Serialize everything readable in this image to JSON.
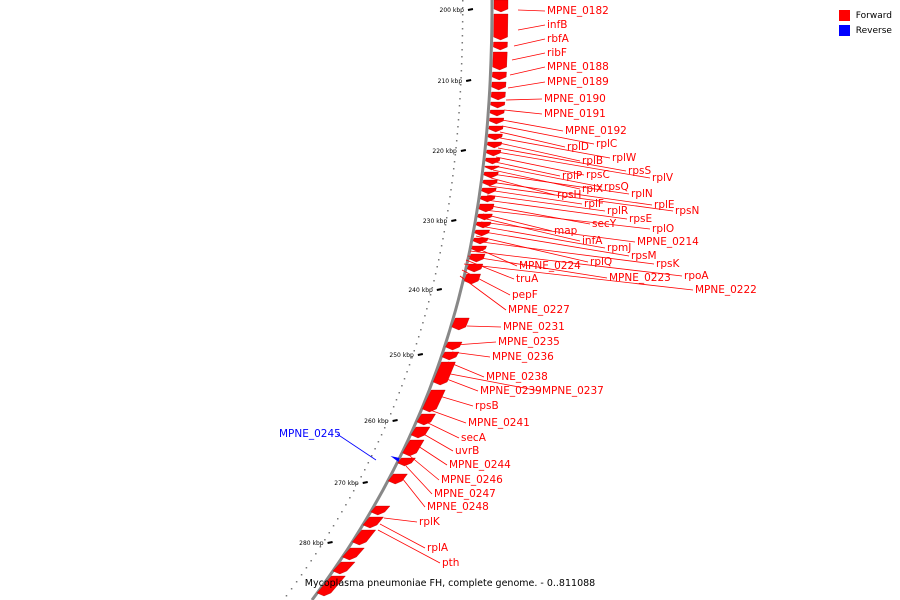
{
  "legend": {
    "forward_label": "Forward",
    "reverse_label": "Reverse",
    "forward_color": "#ff0000",
    "reverse_color": "#0000ff"
  },
  "caption": "Mycoplasma pneumoniae FH, complete genome. - 0..811088",
  "scale": {
    "ticks": [
      "200 kbp",
      "210 kbp",
      "220 kbp",
      "230 kbp",
      "240 kbp",
      "250 kbp",
      "260 kbp",
      "270 kbp",
      "280 kbp"
    ]
  },
  "genes": [
    {
      "name": "MPNE_0182",
      "strand": "forward"
    },
    {
      "name": "infB",
      "strand": "forward"
    },
    {
      "name": "rbfA",
      "strand": "forward"
    },
    {
      "name": "ribF",
      "strand": "forward"
    },
    {
      "name": "MPNE_0188",
      "strand": "forward"
    },
    {
      "name": "MPNE_0189",
      "strand": "forward"
    },
    {
      "name": "MPNE_0190",
      "strand": "forward"
    },
    {
      "name": "MPNE_0191",
      "strand": "forward"
    },
    {
      "name": "MPNE_0192",
      "strand": "forward"
    },
    {
      "name": "rplC",
      "strand": "forward"
    },
    {
      "name": "rplD",
      "strand": "forward"
    },
    {
      "name": "rplW",
      "strand": "forward"
    },
    {
      "name": "rplB",
      "strand": "forward"
    },
    {
      "name": "rpsS",
      "strand": "forward"
    },
    {
      "name": "rplV",
      "strand": "forward"
    },
    {
      "name": "rpsC",
      "strand": "forward"
    },
    {
      "name": "rplP",
      "strand": "forward"
    },
    {
      "name": "rpsQ",
      "strand": "forward"
    },
    {
      "name": "rplX",
      "strand": "forward"
    },
    {
      "name": "rplN",
      "strand": "forward"
    },
    {
      "name": "rpsH",
      "strand": "forward"
    },
    {
      "name": "rplE",
      "strand": "forward"
    },
    {
      "name": "rpsN",
      "strand": "forward"
    },
    {
      "name": "rplF",
      "strand": "forward"
    },
    {
      "name": "rplR",
      "strand": "forward"
    },
    {
      "name": "rpsE",
      "strand": "forward"
    },
    {
      "name": "secY",
      "strand": "forward"
    },
    {
      "name": "rplO",
      "strand": "forward"
    },
    {
      "name": "map",
      "strand": "forward"
    },
    {
      "name": "infA",
      "strand": "forward"
    },
    {
      "name": "MPNE_0214",
      "strand": "forward"
    },
    {
      "name": "rpmJ",
      "strand": "forward"
    },
    {
      "name": "rpsM",
      "strand": "forward"
    },
    {
      "name": "rplQ",
      "strand": "forward"
    },
    {
      "name": "rpsK",
      "strand": "forward"
    },
    {
      "name": "MPNE_0224",
      "strand": "forward"
    },
    {
      "name": "rpoA",
      "strand": "forward"
    },
    {
      "name": "MPNE_0223",
      "strand": "forward"
    },
    {
      "name": "truA",
      "strand": "forward"
    },
    {
      "name": "MPNE_0222",
      "strand": "forward"
    },
    {
      "name": "pepF",
      "strand": "forward"
    },
    {
      "name": "MPNE_0227",
      "strand": "forward"
    },
    {
      "name": "MPNE_0231",
      "strand": "forward"
    },
    {
      "name": "MPNE_0235",
      "strand": "forward"
    },
    {
      "name": "MPNE_0236",
      "strand": "forward"
    },
    {
      "name": "MPNE_0238",
      "strand": "forward"
    },
    {
      "name": "MPNE_0239",
      "strand": "forward"
    },
    {
      "name": "MPNE_0237",
      "strand": "forward"
    },
    {
      "name": "rpsB",
      "strand": "forward"
    },
    {
      "name": "MPNE_0241",
      "strand": "forward"
    },
    {
      "name": "secA",
      "strand": "forward"
    },
    {
      "name": "uvrB",
      "strand": "forward"
    },
    {
      "name": "MPNE_0244",
      "strand": "forward"
    },
    {
      "name": "MPNE_0246",
      "strand": "forward"
    },
    {
      "name": "MPNE_0247",
      "strand": "forward"
    },
    {
      "name": "MPNE_0248",
      "strand": "forward"
    },
    {
      "name": "rplK",
      "strand": "forward"
    },
    {
      "name": "rplA",
      "strand": "forward"
    },
    {
      "name": "pth",
      "strand": "forward"
    },
    {
      "name": "MPNE_0245",
      "strand": "reverse"
    }
  ]
}
